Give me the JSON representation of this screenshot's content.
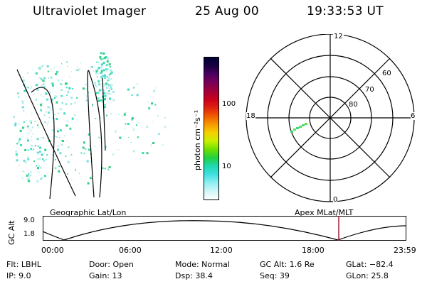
{
  "header": {
    "instrument": "Ultraviolet Imager",
    "date": "25 Aug 00",
    "time": "19:33:53 UT"
  },
  "colorbar": {
    "label": "photon cm⁻²s⁻¹",
    "ticks": [
      "100",
      "10"
    ],
    "colors": [
      "#000033",
      "#1a0040",
      "#4a0060",
      "#7a0058",
      "#a0003a",
      "#c8001c",
      "#e02010",
      "#f05a00",
      "#f59a00",
      "#f5d000",
      "#c8f000",
      "#6ee000",
      "#20d040",
      "#20d8b0",
      "#40e0e0",
      "#90eef0",
      "#d0f6f8",
      "#ffffff"
    ]
  },
  "left_panel": {
    "label": "Geographic Lat/Lon"
  },
  "right_panel": {
    "label": "Apex MLat/MLT",
    "mlt_labels": {
      "top": "12",
      "left": "18",
      "right": "6",
      "bottom": "0"
    },
    "lat_labels": [
      "60",
      "70",
      "80"
    ]
  },
  "altitude_plot": {
    "y_title": "GC Alt",
    "y_ticks": [
      "9.0",
      "1.8"
    ],
    "x_ticks": [
      "00:00",
      "06:00",
      "12:00",
      "18:00",
      "23:59"
    ],
    "current_time_color": "#a01030"
  },
  "info": {
    "flt": "Flt: LBHL",
    "ip": "IP:  9.0",
    "door": "Door: Open",
    "gain": "Gain: 13",
    "mode": "Mode: Normal",
    "dsp": "Dsp:   38.4",
    "gcalt": "GC Alt: 1.6 Re",
    "seq": "Seq: 39",
    "glat": "GLat: −82.4",
    "glon": "GLon:  25.8"
  }
}
